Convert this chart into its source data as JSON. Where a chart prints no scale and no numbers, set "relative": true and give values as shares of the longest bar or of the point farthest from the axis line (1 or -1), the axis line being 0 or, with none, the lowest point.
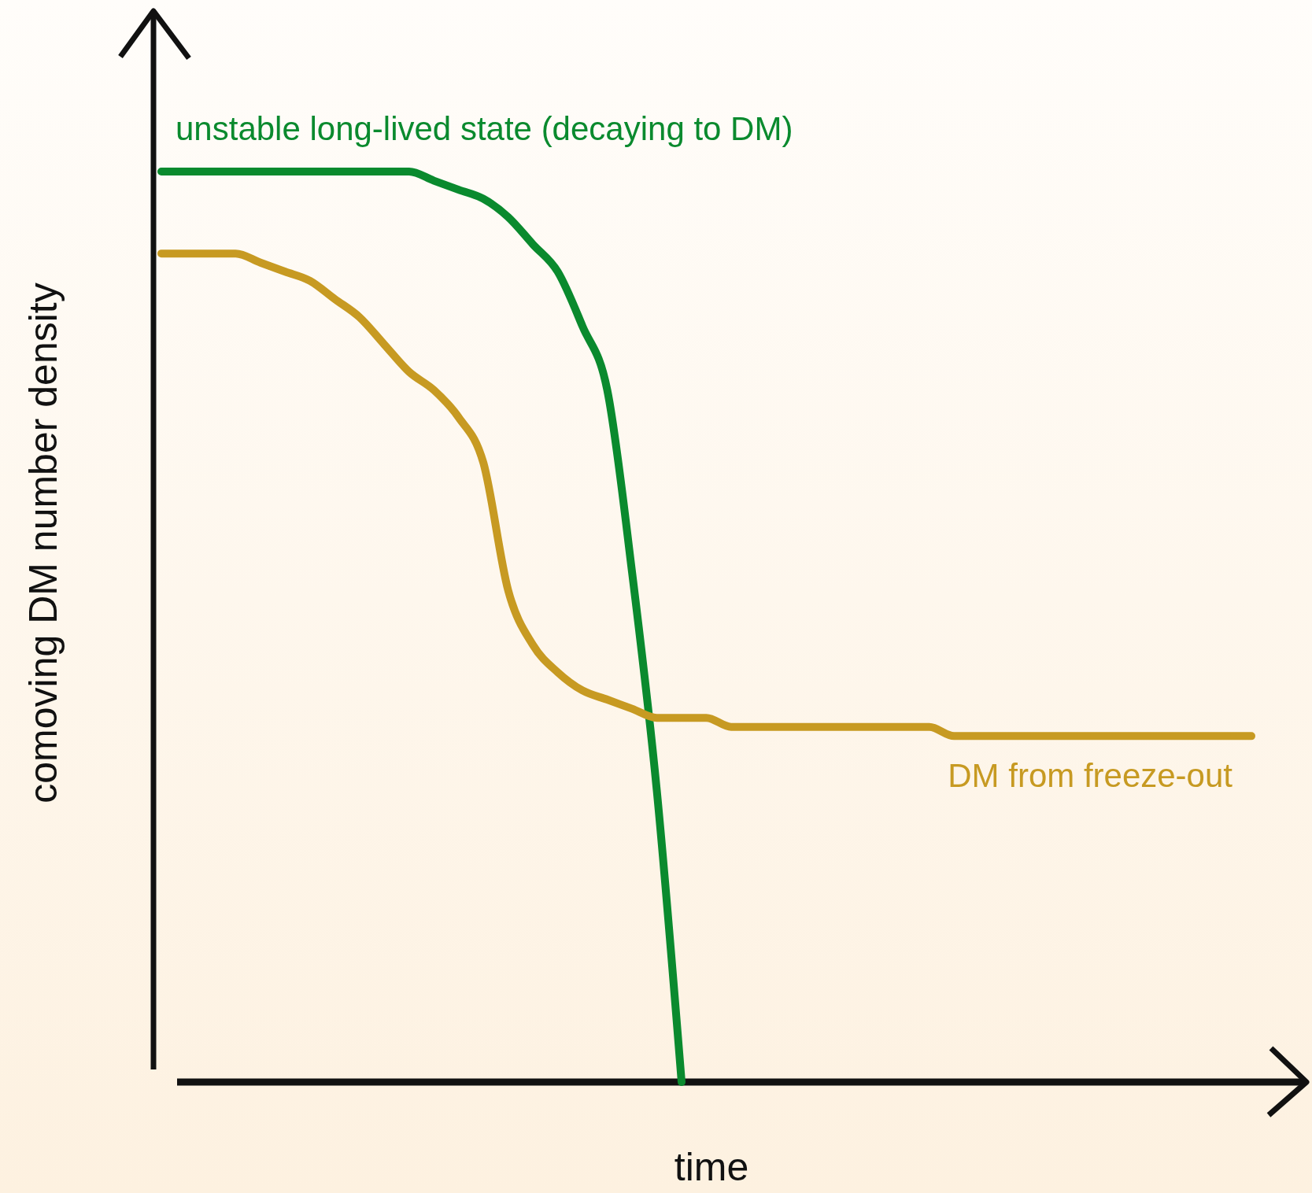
{
  "chart_data": {
    "type": "line",
    "relative": true,
    "xlabel": "time",
    "ylabel": "comoving DM number density",
    "categories": [
      null,
      null,
      null,
      null,
      null,
      null,
      null,
      null,
      null,
      null,
      null,
      null,
      null,
      null,
      null,
      null,
      null,
      null,
      null,
      null,
      null,
      null,
      null,
      null,
      null,
      null,
      null,
      null,
      null,
      null,
      null,
      null,
      null,
      null,
      null,
      null,
      null,
      null,
      null,
      null,
      null,
      null,
      null,
      null,
      null
    ],
    "series": [
      {
        "name": "unstable long-lived state (decaying to DM)",
        "color": "#0a8a2e",
        "values": [
          1,
          1,
          1,
          1,
          1,
          1,
          1,
          1,
          1,
          1,
          1,
          0.99,
          0.98,
          0.97,
          0.95,
          0.92,
          0.89,
          0.83,
          0.76,
          0.56,
          0.32,
          0,
          null,
          null,
          null,
          null,
          null,
          null,
          null,
          null,
          null,
          null,
          null,
          null,
          null,
          null,
          null,
          null,
          null,
          null,
          null,
          null,
          null,
          null,
          null
        ]
      },
      {
        "name": "DM from freeze-out",
        "color": "#c79a22",
        "values": [
          0.91,
          0.91,
          0.91,
          0.91,
          0.9,
          0.89,
          0.88,
          0.86,
          0.84,
          0.81,
          0.78,
          0.76,
          0.73,
          0.68,
          0.54,
          0.48,
          0.45,
          0.43,
          0.42,
          0.41,
          0.4,
          0.4,
          0.4,
          0.39,
          0.39,
          0.39,
          0.39,
          0.39,
          0.39,
          0.39,
          0.39,
          0.39,
          0.38,
          0.38,
          0.38,
          0.38,
          0.38,
          0.38,
          0.38,
          0.38,
          0.38,
          0.38,
          0.38,
          0.38,
          0.38
        ]
      }
    ]
  }
}
